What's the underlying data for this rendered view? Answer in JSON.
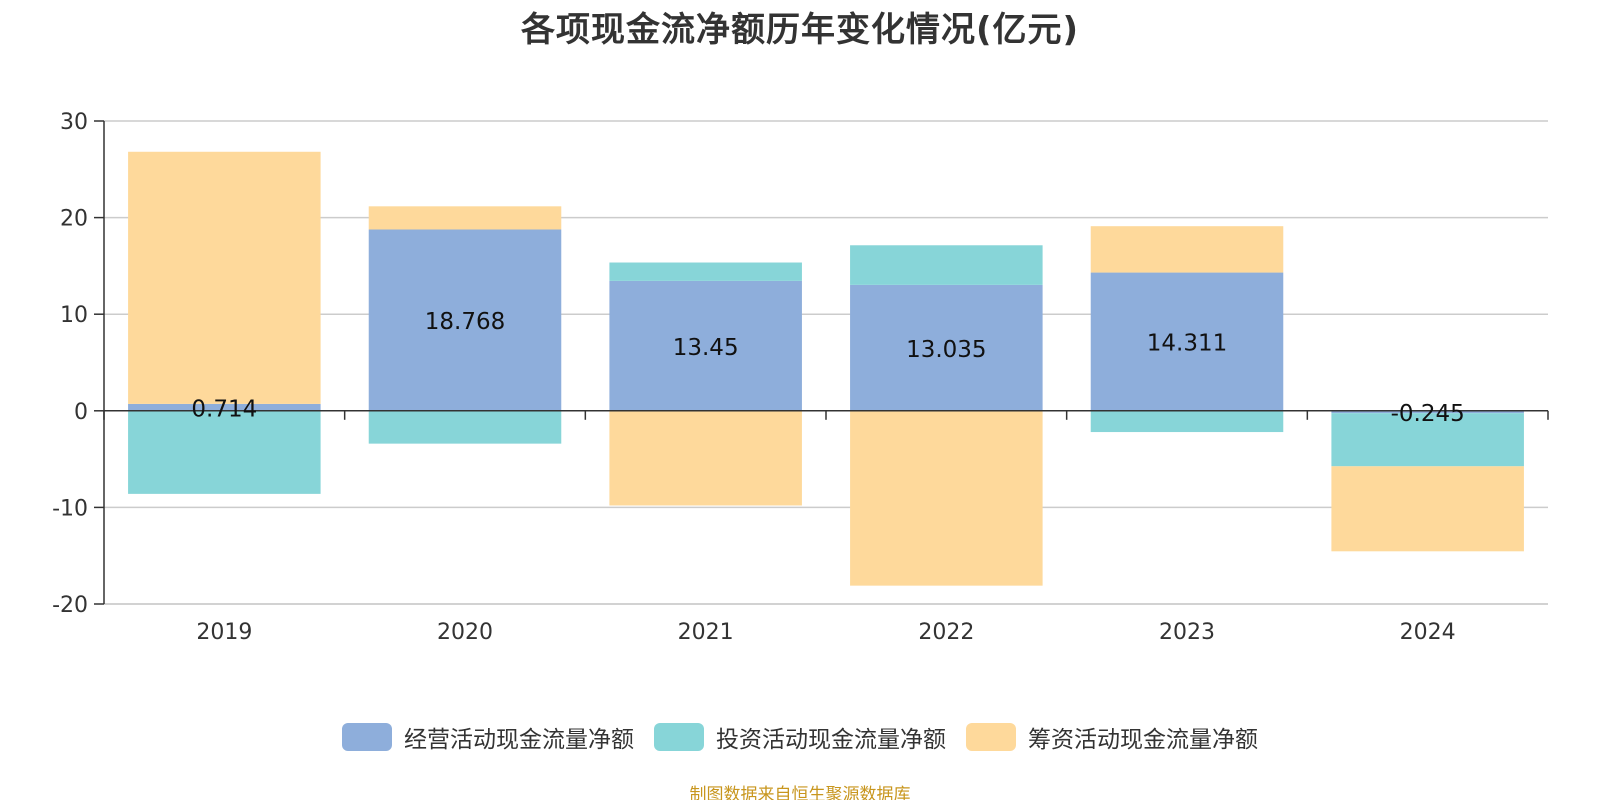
{
  "chart_data": {
    "type": "bar",
    "stacked": true,
    "title": "各项现金流净额历年变化情况(亿元)",
    "xlabel": "",
    "ylabel": "",
    "categories": [
      "2019",
      "2020",
      "2021",
      "2022",
      "2023",
      "2024"
    ],
    "ylim": [
      -20,
      30
    ],
    "yticks": [
      30,
      20,
      10,
      0,
      -10,
      -20
    ],
    "grid": true,
    "legend_position": "bottom",
    "series": [
      {
        "name": "经营活动现金流量净额",
        "color": "#8eaedb",
        "values": [
          0.714,
          18.768,
          13.45,
          13.035,
          14.311,
          -0.245
        ],
        "labels": [
          "0.714",
          "18.768",
          "13.45",
          "13.035",
          "14.311",
          "-0.245"
        ]
      },
      {
        "name": "投资活动现金流量净额",
        "color": "#87d5d8",
        "values": [
          -8.6,
          -3.4,
          1.9,
          4.1,
          -2.2,
          -5.5
        ]
      },
      {
        "name": "筹资活动现金流量净额",
        "color": "#fed99b",
        "values": [
          26.1,
          2.4,
          -9.8,
          -18.1,
          4.8,
          -8.8
        ]
      }
    ]
  },
  "source_note": "制图数据来自恒生聚源数据库",
  "colors": {
    "axis": "#333333",
    "grid": "#cccccc",
    "label": "#111111"
  }
}
